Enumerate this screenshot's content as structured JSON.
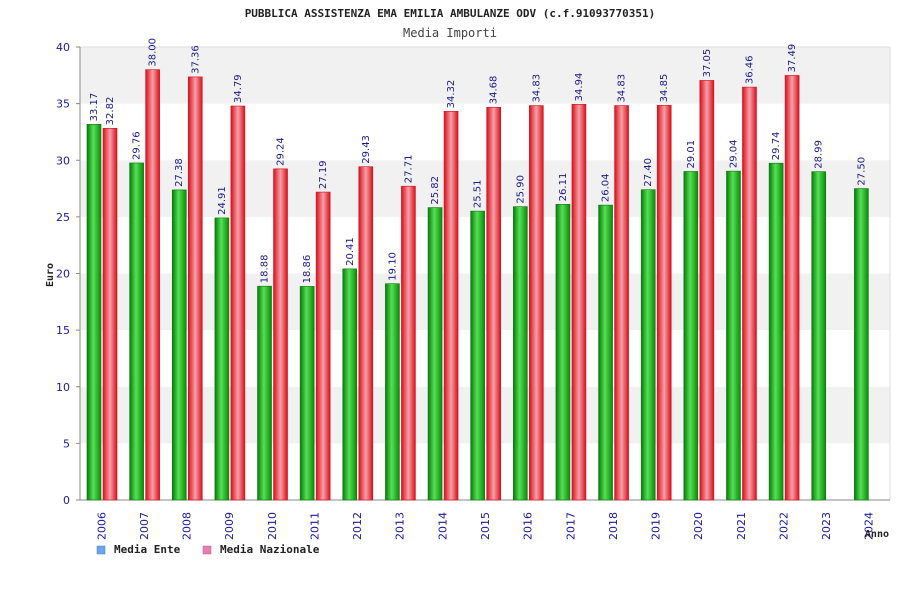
{
  "chart_data": {
    "type": "bar",
    "title": "PUBBLICA ASSISTENZA EMA EMILIA AMBULANZE ODV (c.f.91093770351)",
    "subtitle": "Media Importi",
    "ylabel": "Euro",
    "xlabel": "Anno",
    "ylim": [
      0,
      40
    ],
    "yticks": [
      0,
      5,
      10,
      15,
      20,
      25,
      30,
      35,
      40
    ],
    "categories": [
      "2006",
      "2007",
      "2008",
      "2009",
      "2010",
      "2011",
      "2012",
      "2013",
      "2014",
      "2015",
      "2016",
      "2017",
      "2018",
      "2019",
      "2020",
      "2021",
      "2022",
      "2023",
      "2024"
    ],
    "series": [
      {
        "name": "Media Ente",
        "values": [
          33.17,
          29.76,
          27.38,
          24.91,
          18.88,
          18.86,
          20.41,
          19.1,
          25.82,
          25.51,
          25.9,
          26.11,
          26.04,
          27.4,
          29.01,
          29.04,
          29.74,
          28.99,
          27.5
        ],
        "labels": [
          "33.17",
          "29.76",
          "27.38",
          "24.91",
          "18.88",
          "18.86",
          "20.41",
          "19.10",
          "25.82",
          "25.51",
          "25.90",
          "26.11",
          "26.04",
          "27.40",
          "29.01",
          "29.04",
          "29.74",
          "28.99",
          "27.50"
        ]
      },
      {
        "name": "Media Nazionale",
        "values": [
          32.82,
          38.0,
          37.36,
          34.79,
          29.24,
          27.19,
          29.43,
          27.71,
          34.32,
          34.68,
          34.83,
          34.94,
          34.83,
          34.85,
          37.05,
          36.46,
          37.49,
          null,
          null
        ],
        "labels": [
          "32.82",
          "38.00",
          "37.36",
          "34.79",
          "29.24",
          "27.19",
          "29.43",
          "27.71",
          "34.32",
          "34.68",
          "34.83",
          "34.94",
          "34.83",
          "34.85",
          "37.05",
          "36.46",
          "37.49",
          null,
          null
        ]
      }
    ],
    "legend": {
      "placement": "bottom-left",
      "items": [
        {
          "label": "Media Ente",
          "swatch": "#6aa6e8"
        },
        {
          "label": "Media Nazionale",
          "swatch": "#e57fb0"
        }
      ]
    },
    "colors": {
      "ente_dark": "#0a7a0a",
      "ente_light": "#55e055",
      "naz_dark": "#d8101c",
      "naz_light": "#f6a0a8",
      "band": "#f1f1f1",
      "axis": "#888888"
    },
    "grid": "horizontal-bands"
  }
}
